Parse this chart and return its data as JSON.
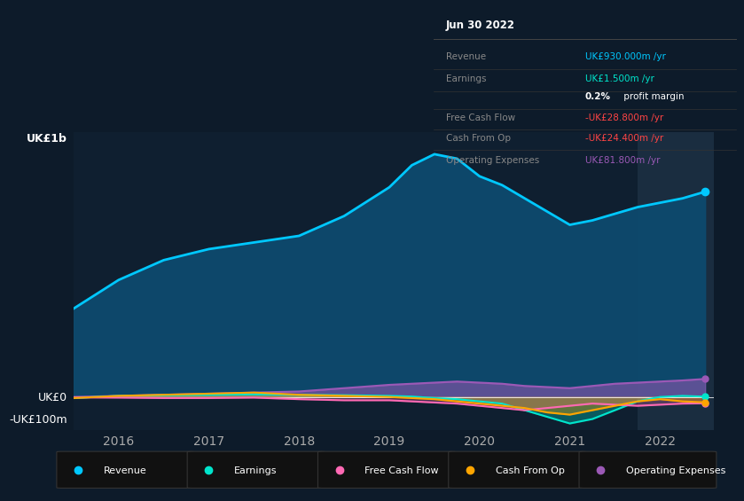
{
  "bg_color": "#0d1b2a",
  "plot_bg": "#0f1f30",
  "highlight_bg": "#1a2d40",
  "years": [
    2015.5,
    2016.0,
    2016.5,
    2017.0,
    2017.5,
    2018.0,
    2018.5,
    2019.0,
    2019.25,
    2019.5,
    2019.75,
    2020.0,
    2020.25,
    2020.5,
    2020.75,
    2021.0,
    2021.25,
    2021.5,
    2021.75,
    2022.0,
    2022.25,
    2022.5
  ],
  "revenue": [
    400,
    530,
    620,
    670,
    700,
    730,
    820,
    950,
    1050,
    1100,
    1080,
    1000,
    960,
    900,
    840,
    780,
    800,
    830,
    860,
    880,
    900,
    930
  ],
  "earnings": [
    -5,
    5,
    8,
    10,
    12,
    10,
    8,
    5,
    2,
    -5,
    -10,
    -20,
    -30,
    -60,
    -90,
    -120,
    -100,
    -60,
    -20,
    0,
    5,
    1.5
  ],
  "free_cash_flow": [
    -2,
    -3,
    -5,
    -5,
    -3,
    -10,
    -15,
    -15,
    -20,
    -25,
    -30,
    -40,
    -50,
    -60,
    -50,
    -40,
    -30,
    -35,
    -40,
    -35,
    -30,
    -28.8
  ],
  "cash_from_op": [
    -5,
    5,
    10,
    15,
    20,
    10,
    5,
    0,
    -5,
    -10,
    -20,
    -30,
    -40,
    -50,
    -70,
    -80,
    -60,
    -40,
    -20,
    -10,
    -20,
    -24.4
  ],
  "operating_expenses": [
    0,
    5,
    10,
    15,
    20,
    25,
    40,
    55,
    60,
    65,
    70,
    65,
    60,
    50,
    45,
    40,
    50,
    60,
    65,
    70,
    75,
    81.8
  ],
  "revenue_color": "#00c8ff",
  "revenue_fill": "#0d4a6e",
  "earnings_color": "#00e5cc",
  "free_cash_flow_color": "#ff69b4",
  "cash_from_op_color": "#ffa500",
  "operating_expenses_color": "#9b59b6",
  "zero_line_color": "#ffffff",
  "grid_color": "#1e3a50",
  "ylabel_top": "UK£1b",
  "ylabel_zero": "UK£0",
  "ylabel_neg": "-UK£100m",
  "xticks": [
    2016,
    2017,
    2018,
    2019,
    2020,
    2021,
    2022
  ],
  "highlight_start": 2021.75,
  "highlight_end": 2022.6,
  "xlim": [
    2015.5,
    2022.6
  ],
  "ylim": [
    -150,
    1200
  ],
  "info_box": {
    "title": "Jun 30 2022",
    "rows": [
      {
        "label": "Revenue",
        "value": "UK£930.000m /yr",
        "value_color": "#00c8ff",
        "is_margin": false
      },
      {
        "label": "Earnings",
        "value": "UK£1.500m /yr",
        "value_color": "#00e5cc",
        "is_margin": false
      },
      {
        "label": "",
        "value": "0.2% profit margin",
        "value_color": "#ffffff",
        "is_margin": true
      },
      {
        "label": "Free Cash Flow",
        "value": "-UK£28.800m /yr",
        "value_color": "#ff4444",
        "is_margin": false
      },
      {
        "label": "Cash From Op",
        "value": "-UK£24.400m /yr",
        "value_color": "#ff4444",
        "is_margin": false
      },
      {
        "label": "Operating Expenses",
        "value": "UK£81.800m /yr",
        "value_color": "#9b59b6",
        "is_margin": false
      }
    ]
  },
  "legend": [
    {
      "label": "Revenue",
      "color": "#00c8ff"
    },
    {
      "label": "Earnings",
      "color": "#00e5cc"
    },
    {
      "label": "Free Cash Flow",
      "color": "#ff69b4"
    },
    {
      "label": "Cash From Op",
      "color": "#ffa500"
    },
    {
      "label": "Operating Expenses",
      "color": "#9b59b6"
    }
  ]
}
